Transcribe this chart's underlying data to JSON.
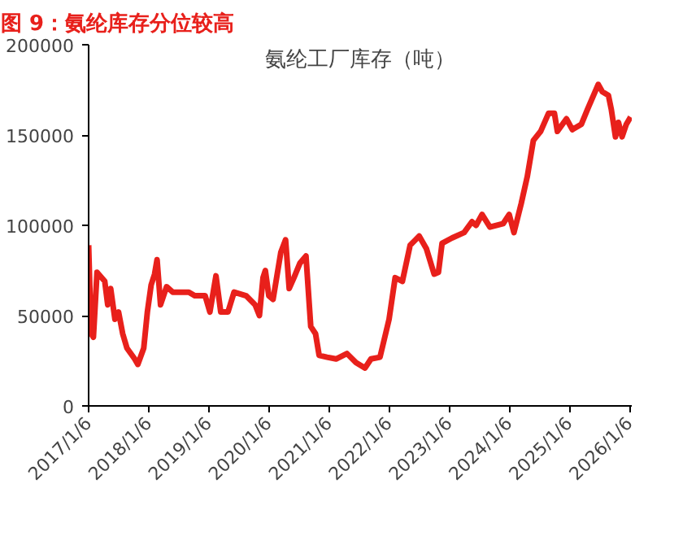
{
  "chart_data": {
    "type": "line",
    "title": "图 9：氨纶库存分位较高",
    "subtitle": "氨纶工厂库存（吨）",
    "x": [
      "2017-01-06",
      "2017-01-21",
      "2017-02-04",
      "2017-02-26",
      "2017-04-14",
      "2017-05-02",
      "2017-05-20",
      "2017-06-15",
      "2017-07-07",
      "2017-08-01",
      "2017-08-27",
      "2017-10-13",
      "2017-11-01",
      "2017-12-07",
      "2017-12-29",
      "2018-01-21",
      "2018-02-11",
      "2018-02-26",
      "2018-03-19",
      "2018-04-25",
      "2018-06-01",
      "2018-09-07",
      "2018-10-13",
      "2018-12-15",
      "2019-01-13",
      "2019-02-19",
      "2019-03-20",
      "2019-05-03",
      "2019-06-09",
      "2019-08-21",
      "2019-10-15",
      "2019-11-10",
      "2019-12-02",
      "2019-12-16",
      "2020-01-06",
      "2020-02-01",
      "2020-02-19",
      "2020-03-19",
      "2020-04-17",
      "2020-05-09",
      "2020-06-07",
      "2020-07-13",
      "2020-08-19",
      "2020-09-17",
      "2020-10-16",
      "2020-11-07",
      "2020-12-25",
      "2021-02-18",
      "2021-04-25",
      "2021-06-19",
      "2021-08-13",
      "2021-09-18",
      "2021-11-12",
      "2022-01-06",
      "2022-02-12",
      "2022-03-28",
      "2022-05-14",
      "2022-07-08",
      "2022-08-21",
      "2022-10-07",
      "2022-11-02",
      "2022-11-24",
      "2023-01-24",
      "2023-04-07",
      "2023-05-25",
      "2023-06-19",
      "2023-07-25",
      "2023-09-11",
      "2023-12-01",
      "2024-01-06",
      "2024-02-04",
      "2024-03-19",
      "2024-04-25",
      "2024-06-01",
      "2024-07-15",
      "2024-09-01",
      "2024-10-07",
      "2024-10-25",
      "2024-12-19",
      "2025-01-24",
      "2025-03-20",
      "2025-04-25",
      "2025-06-30",
      "2025-07-25",
      "2025-08-31",
      "2025-09-18",
      "2025-10-13",
      "2025-10-31",
      "2025-11-22",
      "2025-12-18",
      "2026-01-13"
    ],
    "series": [
      {
        "color": "#e8201b",
        "values": [
          89000,
          40000,
          38000,
          74000,
          69000,
          56000,
          65000,
          48000,
          52000,
          40000,
          32000,
          26000,
          23000,
          32000,
          52000,
          67000,
          73000,
          81000,
          56000,
          66000,
          63000,
          63000,
          61000,
          61000,
          52000,
          72000,
          52000,
          52000,
          63000,
          61000,
          56000,
          50000,
          71000,
          75000,
          61000,
          59000,
          69000,
          85000,
          92000,
          65000,
          71000,
          79000,
          83000,
          44000,
          40000,
          28000,
          27000,
          26000,
          29000,
          24000,
          21000,
          26000,
          27000,
          48000,
          71000,
          69000,
          89000,
          94000,
          87000,
          73000,
          74000,
          90000,
          93000,
          96000,
          102000,
          100000,
          106000,
          99000,
          101000,
          106000,
          96000,
          112000,
          127000,
          147000,
          152000,
          162000,
          162000,
          152000,
          159000,
          153000,
          156000,
          164000,
          178000,
          174000,
          172000,
          164000,
          149000,
          157000,
          149000,
          156000,
          160000
        ]
      }
    ],
    "xlim": [
      "2017-01-06",
      "2026-01-20"
    ],
    "xticks": [
      {
        "value": "2017-01-06",
        "label": "2017/1/6"
      },
      {
        "value": "2018-01-06",
        "label": "2018/1/6"
      },
      {
        "value": "2019-01-06",
        "label": "2019/1/6"
      },
      {
        "value": "2020-01-06",
        "label": "2020/1/6"
      },
      {
        "value": "2021-01-06",
        "label": "2021/1/6"
      },
      {
        "value": "2022-01-06",
        "label": "2022/1/6"
      },
      {
        "value": "2023-01-06",
        "label": "2023/1/6"
      },
      {
        "value": "2024-01-06",
        "label": "2024/1/6"
      },
      {
        "value": "2025-01-06",
        "label": "2025/1/6"
      },
      {
        "value": "2026-01-06",
        "label": "2026/1/6"
      }
    ],
    "ylim": [
      0,
      200000
    ],
    "yticks": [
      0,
      50000,
      100000,
      150000,
      200000
    ],
    "grid": false,
    "line_style": "solid"
  }
}
